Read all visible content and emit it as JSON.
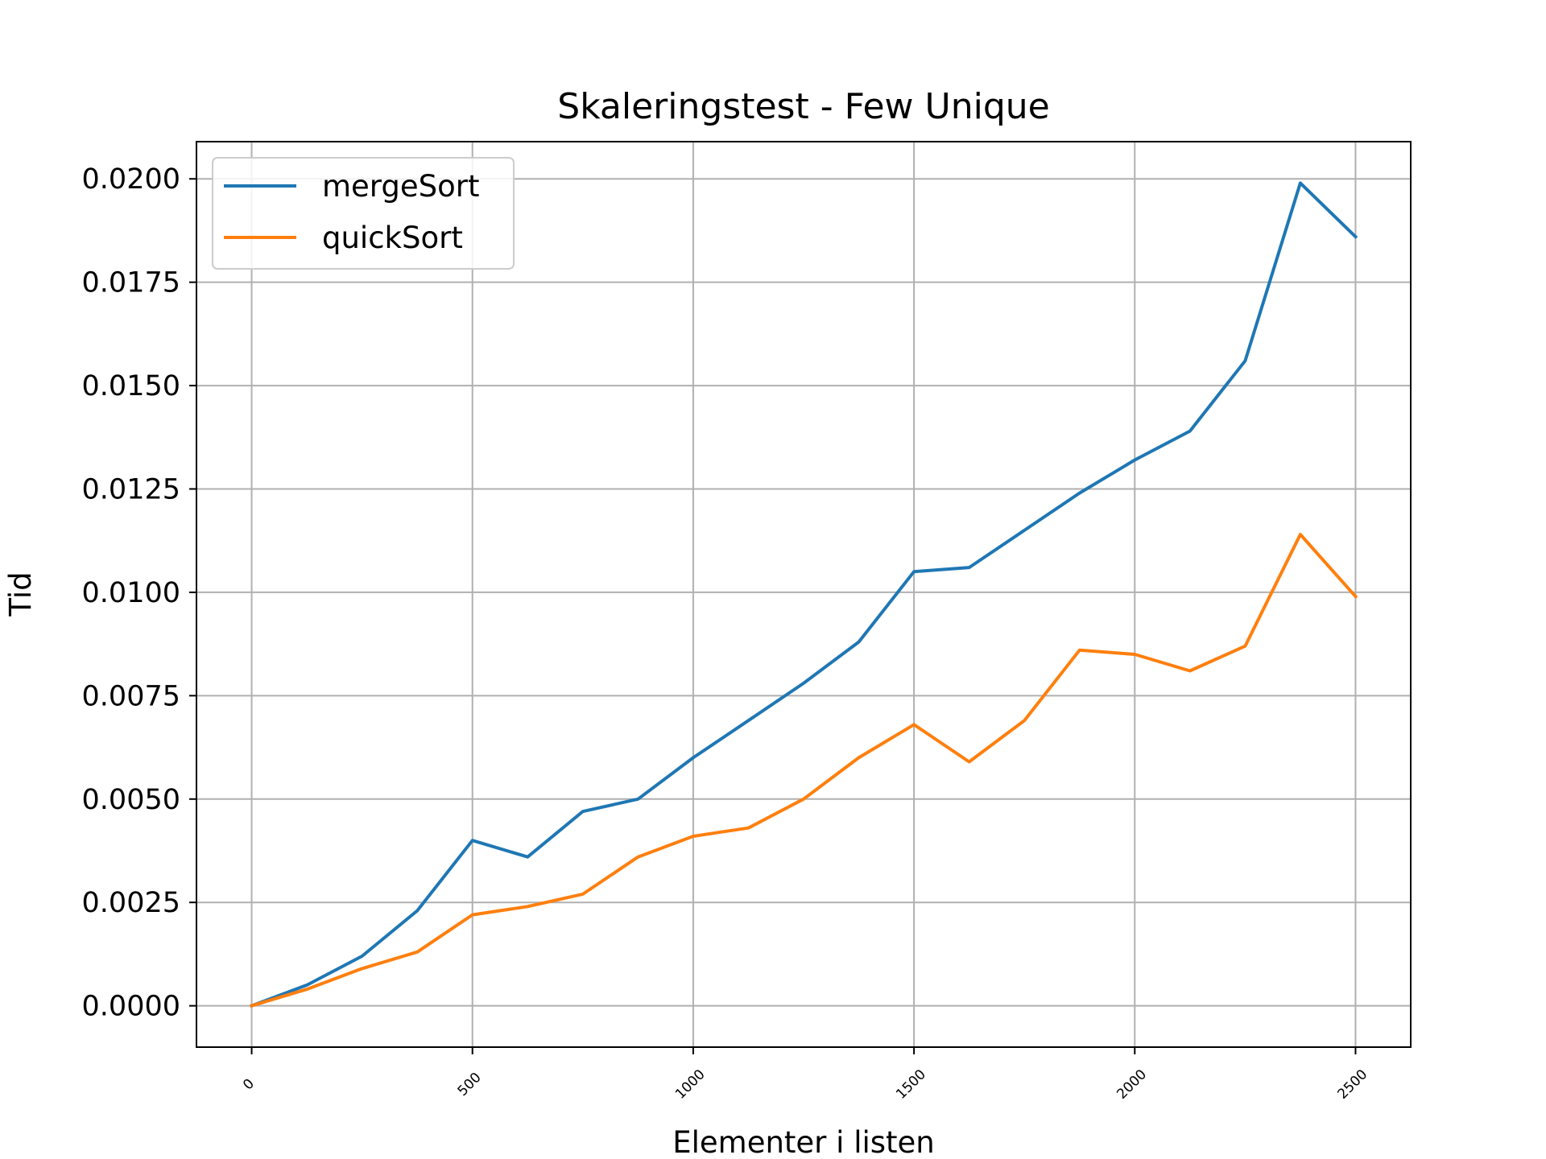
{
  "chart_data": {
    "type": "line",
    "title": "Skaleringstest - Few Unique",
    "xlabel": "Elementer i listen",
    "ylabel": "Tid",
    "xlim": [
      -125,
      2625
    ],
    "ylim": [
      -0.001,
      0.0209
    ],
    "xticks": [
      0,
      500,
      1000,
      1500,
      2000,
      2500
    ],
    "xtick_labels": [
      "0",
      "500",
      "1000",
      "1500",
      "2000",
      "2500"
    ],
    "yticks": [
      0,
      0.0025,
      0.005,
      0.0075,
      0.01,
      0.0125,
      0.015,
      0.0175,
      0.02
    ],
    "ytick_labels": [
      "0.0000",
      "0.0025",
      "0.0050",
      "0.0075",
      "0.0100",
      "0.0125",
      "0.0150",
      "0.0175",
      "0.0200"
    ],
    "grid": true,
    "legend_position": "upper-left",
    "x": [
      0,
      125,
      250,
      375,
      500,
      625,
      750,
      875,
      1000,
      1125,
      1250,
      1375,
      1500,
      1625,
      1750,
      1875,
      2000,
      2125,
      2250,
      2375,
      2500
    ],
    "series": [
      {
        "name": "mergeSort",
        "color": "#1f77b4",
        "values": [
          0.0,
          0.0005,
          0.0012,
          0.0023,
          0.004,
          0.0036,
          0.0047,
          0.005,
          0.006,
          0.0069,
          0.0078,
          0.0088,
          0.0105,
          0.0106,
          0.0115,
          0.0124,
          0.0132,
          0.0139,
          0.0156,
          0.0199,
          0.0186
        ]
      },
      {
        "name": "quickSort",
        "color": "#ff7f0e",
        "values": [
          0.0,
          0.0004,
          0.0009,
          0.0013,
          0.0022,
          0.0024,
          0.0027,
          0.0036,
          0.0041,
          0.0043,
          0.005,
          0.006,
          0.0068,
          0.0059,
          0.0069,
          0.0086,
          0.0085,
          0.0081,
          0.0087,
          0.0114,
          0.0099
        ]
      }
    ]
  }
}
